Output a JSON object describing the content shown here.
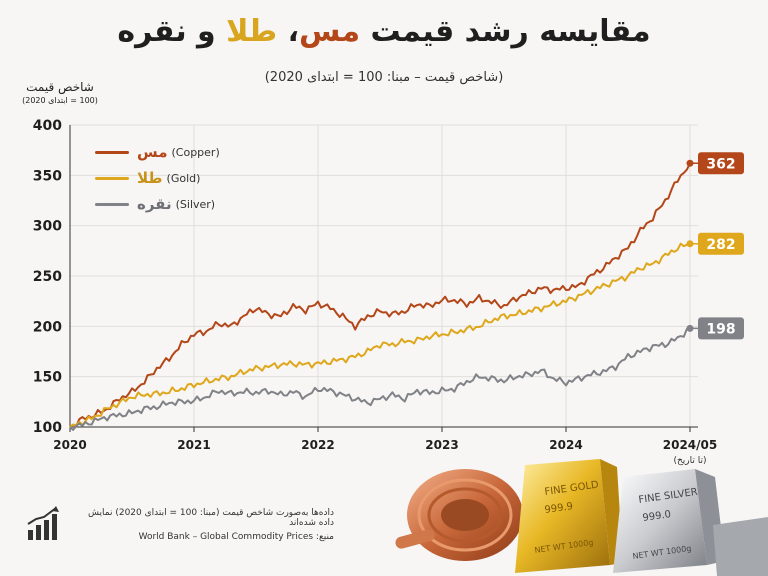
{
  "title": {
    "part1": "مقایسه رشد قیمت",
    "copper": "مس",
    "sep": "، ",
    "gold": "طلا",
    "and": " و ",
    "silver": "نقره"
  },
  "subtitle": "(شاخص قیمت – مبنا: 100 = ابتدای 2020)",
  "y_axis_title": {
    "line1": "شاخص قیمت",
    "line2": "(100 = ابتدای 2020)"
  },
  "footnote": "داده‌ها به‌صورت شاخص قیمت (مبنا: 100 = ابتدای 2020) نمایش داده شده‌اند",
  "source": "منبع:  World Bank – Global Commodity Prices",
  "bars": {
    "gold": {
      "label": "FINE GOLD",
      "purity": "999.9",
      "weight": "NET WT 1000g"
    },
    "silver": {
      "label": "FINE SILVER",
      "purity": "999.0",
      "weight": "NET WT 1000g"
    }
  },
  "colors": {
    "copper": "#b4471a",
    "gold": "#dea71c",
    "silver": "#808287"
  },
  "chart_data": {
    "type": "line",
    "x_tick_labels": [
      "2020",
      "2021",
      "2022",
      "2023",
      "2024",
      "2024/05"
    ],
    "x_tick_positions": [
      2020,
      2021,
      2022,
      2023,
      2024,
      2025
    ],
    "x_end_note": "(تا تاریخ)",
    "xlim": [
      2020,
      2025
    ],
    "ylim": [
      100,
      400
    ],
    "yticks": [
      100,
      150,
      200,
      250,
      300,
      350,
      400
    ],
    "grid": true,
    "legend_position": "top-left",
    "series": [
      {
        "name": "مس",
        "name_en": "(Copper)",
        "color": "#b4471a",
        "end_label": "362",
        "points": [
          [
            2020,
            100
          ],
          [
            2020.1,
            108
          ],
          [
            2020.2,
            112
          ],
          [
            2020.3,
            118
          ],
          [
            2020.4,
            128
          ],
          [
            2020.5,
            135
          ],
          [
            2020.6,
            145
          ],
          [
            2020.7,
            158
          ],
          [
            2020.8,
            168
          ],
          [
            2020.9,
            182
          ],
          [
            2021,
            192
          ],
          [
            2021.1,
            195
          ],
          [
            2021.2,
            203
          ],
          [
            2021.3,
            200
          ],
          [
            2021.4,
            210
          ],
          [
            2021.5,
            218
          ],
          [
            2021.6,
            212
          ],
          [
            2021.7,
            210
          ],
          [
            2021.8,
            220
          ],
          [
            2021.9,
            216
          ],
          [
            2022,
            223
          ],
          [
            2022.1,
            218
          ],
          [
            2022.2,
            210
          ],
          [
            2022.3,
            200
          ],
          [
            2022.4,
            210
          ],
          [
            2022.5,
            215
          ],
          [
            2022.6,
            212
          ],
          [
            2022.7,
            215
          ],
          [
            2022.8,
            222
          ],
          [
            2022.9,
            220
          ],
          [
            2023,
            226
          ],
          [
            2023.1,
            226
          ],
          [
            2023.2,
            222
          ],
          [
            2023.3,
            228
          ],
          [
            2023.4,
            224
          ],
          [
            2023.5,
            220
          ],
          [
            2023.6,
            228
          ],
          [
            2023.7,
            233
          ],
          [
            2023.8,
            238
          ],
          [
            2023.9,
            236
          ],
          [
            2024,
            238
          ],
          [
            2024.1,
            240
          ],
          [
            2024.2,
            250
          ],
          [
            2024.3,
            258
          ],
          [
            2024.4,
            268
          ],
          [
            2024.5,
            278
          ],
          [
            2024.6,
            295
          ],
          [
            2024.7,
            308
          ],
          [
            2024.8,
            325
          ],
          [
            2024.9,
            345
          ],
          [
            2025,
            362
          ]
        ]
      },
      {
        "name": "طلا",
        "name_en": "(Gold)",
        "color": "#dea71c",
        "end_label": "282",
        "points": [
          [
            2020,
            100
          ],
          [
            2020.1,
            105
          ],
          [
            2020.2,
            110
          ],
          [
            2020.3,
            118
          ],
          [
            2020.4,
            124
          ],
          [
            2020.5,
            130
          ],
          [
            2020.6,
            132
          ],
          [
            2020.7,
            133
          ],
          [
            2020.8,
            135
          ],
          [
            2020.9,
            138
          ],
          [
            2021,
            142
          ],
          [
            2021.1,
            145
          ],
          [
            2021.2,
            148
          ],
          [
            2021.3,
            150
          ],
          [
            2021.4,
            155
          ],
          [
            2021.5,
            158
          ],
          [
            2021.6,
            160
          ],
          [
            2021.7,
            162
          ],
          [
            2021.8,
            163
          ],
          [
            2021.9,
            162
          ],
          [
            2022,
            163
          ],
          [
            2022.1,
            165
          ],
          [
            2022.2,
            167
          ],
          [
            2022.3,
            170
          ],
          [
            2022.4,
            175
          ],
          [
            2022.5,
            182
          ],
          [
            2022.6,
            182
          ],
          [
            2022.7,
            185
          ],
          [
            2022.8,
            186
          ],
          [
            2022.9,
            190
          ],
          [
            2023,
            192
          ],
          [
            2023.1,
            194
          ],
          [
            2023.2,
            197
          ],
          [
            2023.3,
            200
          ],
          [
            2023.4,
            206
          ],
          [
            2023.5,
            210
          ],
          [
            2023.6,
            212
          ],
          [
            2023.7,
            215
          ],
          [
            2023.8,
            218
          ],
          [
            2023.9,
            222
          ],
          [
            2024,
            225
          ],
          [
            2024.1,
            230
          ],
          [
            2024.2,
            235
          ],
          [
            2024.3,
            240
          ],
          [
            2024.4,
            245
          ],
          [
            2024.5,
            250
          ],
          [
            2024.6,
            258
          ],
          [
            2024.7,
            262
          ],
          [
            2024.8,
            270
          ],
          [
            2024.9,
            278
          ],
          [
            2025,
            282
          ]
        ]
      },
      {
        "name": "نقره",
        "name_en": "(Silver)",
        "color": "#808287",
        "end_label": "198",
        "points": [
          [
            2020,
            100
          ],
          [
            2020.1,
            102
          ],
          [
            2020.2,
            106
          ],
          [
            2020.3,
            110
          ],
          [
            2020.4,
            112
          ],
          [
            2020.5,
            114
          ],
          [
            2020.6,
            118
          ],
          [
            2020.7,
            120
          ],
          [
            2020.8,
            124
          ],
          [
            2020.9,
            125
          ],
          [
            2021,
            126
          ],
          [
            2021.1,
            130
          ],
          [
            2021.2,
            136
          ],
          [
            2021.3,
            133
          ],
          [
            2021.4,
            135
          ],
          [
            2021.5,
            134
          ],
          [
            2021.6,
            136
          ],
          [
            2021.7,
            132
          ],
          [
            2021.8,
            135
          ],
          [
            2021.9,
            130
          ],
          [
            2022,
            138
          ],
          [
            2022.1,
            136
          ],
          [
            2022.2,
            132
          ],
          [
            2022.3,
            128
          ],
          [
            2022.4,
            124
          ],
          [
            2022.5,
            128
          ],
          [
            2022.6,
            132
          ],
          [
            2022.7,
            128
          ],
          [
            2022.8,
            136
          ],
          [
            2022.9,
            134
          ],
          [
            2023,
            136
          ],
          [
            2023.1,
            138
          ],
          [
            2023.2,
            145
          ],
          [
            2023.3,
            150
          ],
          [
            2023.4,
            148
          ],
          [
            2023.5,
            146
          ],
          [
            2023.6,
            150
          ],
          [
            2023.7,
            152
          ],
          [
            2023.8,
            156
          ],
          [
            2023.9,
            148
          ],
          [
            2024,
            144
          ],
          [
            2024.1,
            148
          ],
          [
            2024.2,
            152
          ],
          [
            2024.3,
            155
          ],
          [
            2024.4,
            160
          ],
          [
            2024.5,
            170
          ],
          [
            2024.6,
            175
          ],
          [
            2024.7,
            180
          ],
          [
            2024.8,
            182
          ],
          [
            2024.9,
            188
          ],
          [
            2025,
            198
          ]
        ]
      }
    ]
  }
}
